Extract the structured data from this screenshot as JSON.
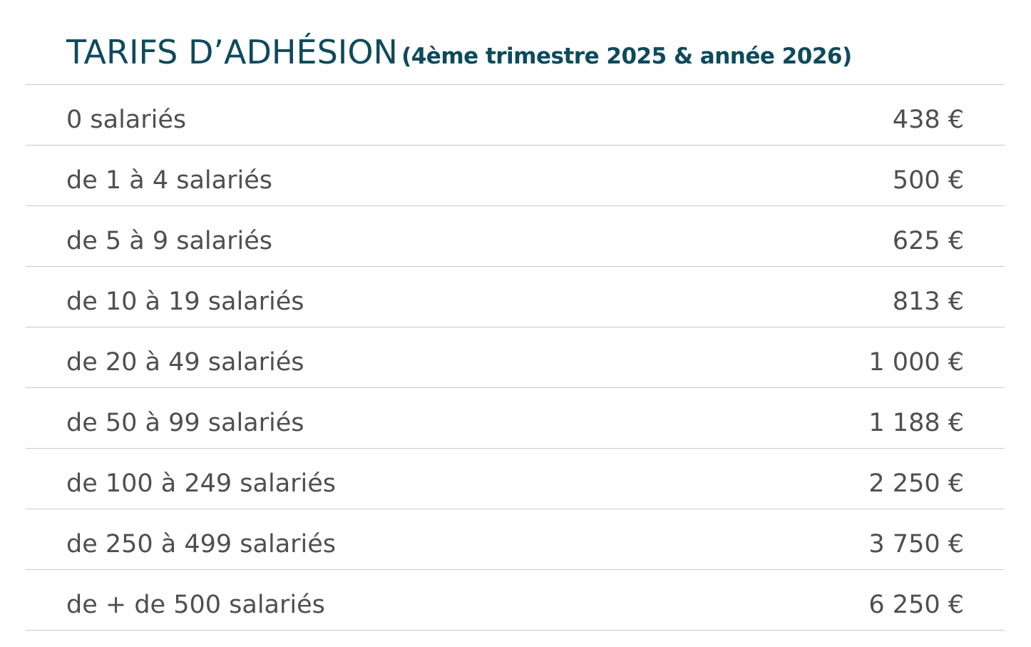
{
  "header": {
    "title": "TARIFS D’ADHÉSION",
    "subtitle": "(4ème trimestre 2025 & année 2026)"
  },
  "rates": [
    {
      "label": "0 salariés",
      "price": "438 €"
    },
    {
      "label": "de 1 à 4 salariés",
      "price": "500 €"
    },
    {
      "label": "de 5 à 9 salariés",
      "price": "625 €"
    },
    {
      "label": "de 10 à 19 salariés",
      "price": "813 €"
    },
    {
      "label": "de 20 à 49 salariés",
      "price": "1 000 €"
    },
    {
      "label": "de 50 à 99 salariés",
      "price": "1 188 €"
    },
    {
      "label": "de 100 à 249 salariés",
      "price": "2 250 €"
    },
    {
      "label": "de 250 à 499 salariés",
      "price": "3 750 €"
    },
    {
      "label": "de + de 500 salariés",
      "price": "6 250 €"
    }
  ],
  "colors": {
    "title": "#0e4a5c",
    "text": "#4f4f4f",
    "divider": "#c9c9c9"
  }
}
